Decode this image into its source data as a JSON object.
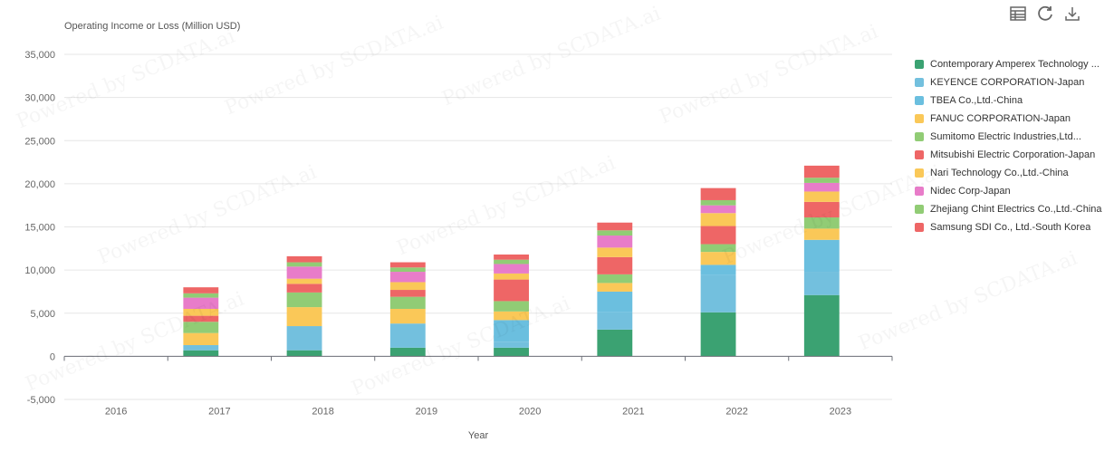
{
  "watermark": "Powered by SCDATA.ai",
  "toolbar": {
    "icons": [
      "table-icon",
      "refresh-icon",
      "download-icon"
    ]
  },
  "chart_data": {
    "type": "bar",
    "stacked": true,
    "title": "",
    "ylabel": "Operating Income or Loss (Million USD)",
    "xlabel": "Year",
    "ylim": [
      -5000,
      35000
    ],
    "yticks": [
      -5000,
      0,
      5000,
      10000,
      15000,
      20000,
      25000,
      30000,
      35000
    ],
    "ytick_labels": [
      "-5,000",
      "0",
      "5,000",
      "10,000",
      "15,000",
      "20,000",
      "25,000",
      "30,000",
      "35,000"
    ],
    "grid": true,
    "legend_position": "right",
    "categories": [
      "2016",
      "2017",
      "2018",
      "2019",
      "2020",
      "2021",
      "2022",
      "2023"
    ],
    "series": [
      {
        "name": "Contemporary Amperex Technology ...",
        "color": "#3ba272",
        "values": [
          null,
          700,
          700,
          1000,
          1000,
          3100,
          5100,
          7100
        ]
      },
      {
        "name": "KEYENCE CORPORATION-Japan",
        "color": "#73c0de",
        "values": [
          null,
          600,
          2800,
          2800,
          700,
          2000,
          4300,
          2700
        ]
      },
      {
        "name": "TBEA Co.,Ltd.-China",
        "color": "#6bbfdf",
        "values": [
          null,
          null,
          null,
          null,
          2500,
          2400,
          1200,
          3700
        ]
      },
      {
        "name": "FANUC CORPORATION-Japan",
        "color": "#fac858",
        "values": [
          null,
          1400,
          2200,
          1700,
          1000,
          1000,
          1500,
          1300
        ]
      },
      {
        "name": "Sumitomo Electric Industries,Ltd...",
        "color": "#91cc75",
        "values": [
          null,
          1300,
          1700,
          1400,
          1200,
          1000,
          900,
          1300
        ]
      },
      {
        "name": "Mitsubishi Electric Corporation-Japan",
        "color": "#ee6666",
        "values": [
          null,
          700,
          1000,
          800,
          2500,
          2000,
          2100,
          1800
        ]
      },
      {
        "name": "Nari Technology Co.,Ltd.-China",
        "color": "#fac858",
        "values": [
          null,
          800,
          600,
          900,
          700,
          1100,
          1500,
          1200
        ]
      },
      {
        "name": "Nidec Corp-Japan",
        "color": "#e87cc9",
        "values": [
          null,
          1300,
          1400,
          1200,
          1100,
          1400,
          900,
          1000
        ]
      },
      {
        "name": "Zhejiang Chint Electrics Co.,Ltd.-China",
        "color": "#91cc75",
        "values": [
          null,
          500,
          500,
          500,
          500,
          600,
          600,
          600
        ]
      },
      {
        "name": "Samsung SDI Co., Ltd.-South Korea",
        "color": "#ee6666",
        "values": [
          null,
          700,
          700,
          600,
          600,
          900,
          1400,
          1400
        ]
      }
    ]
  }
}
